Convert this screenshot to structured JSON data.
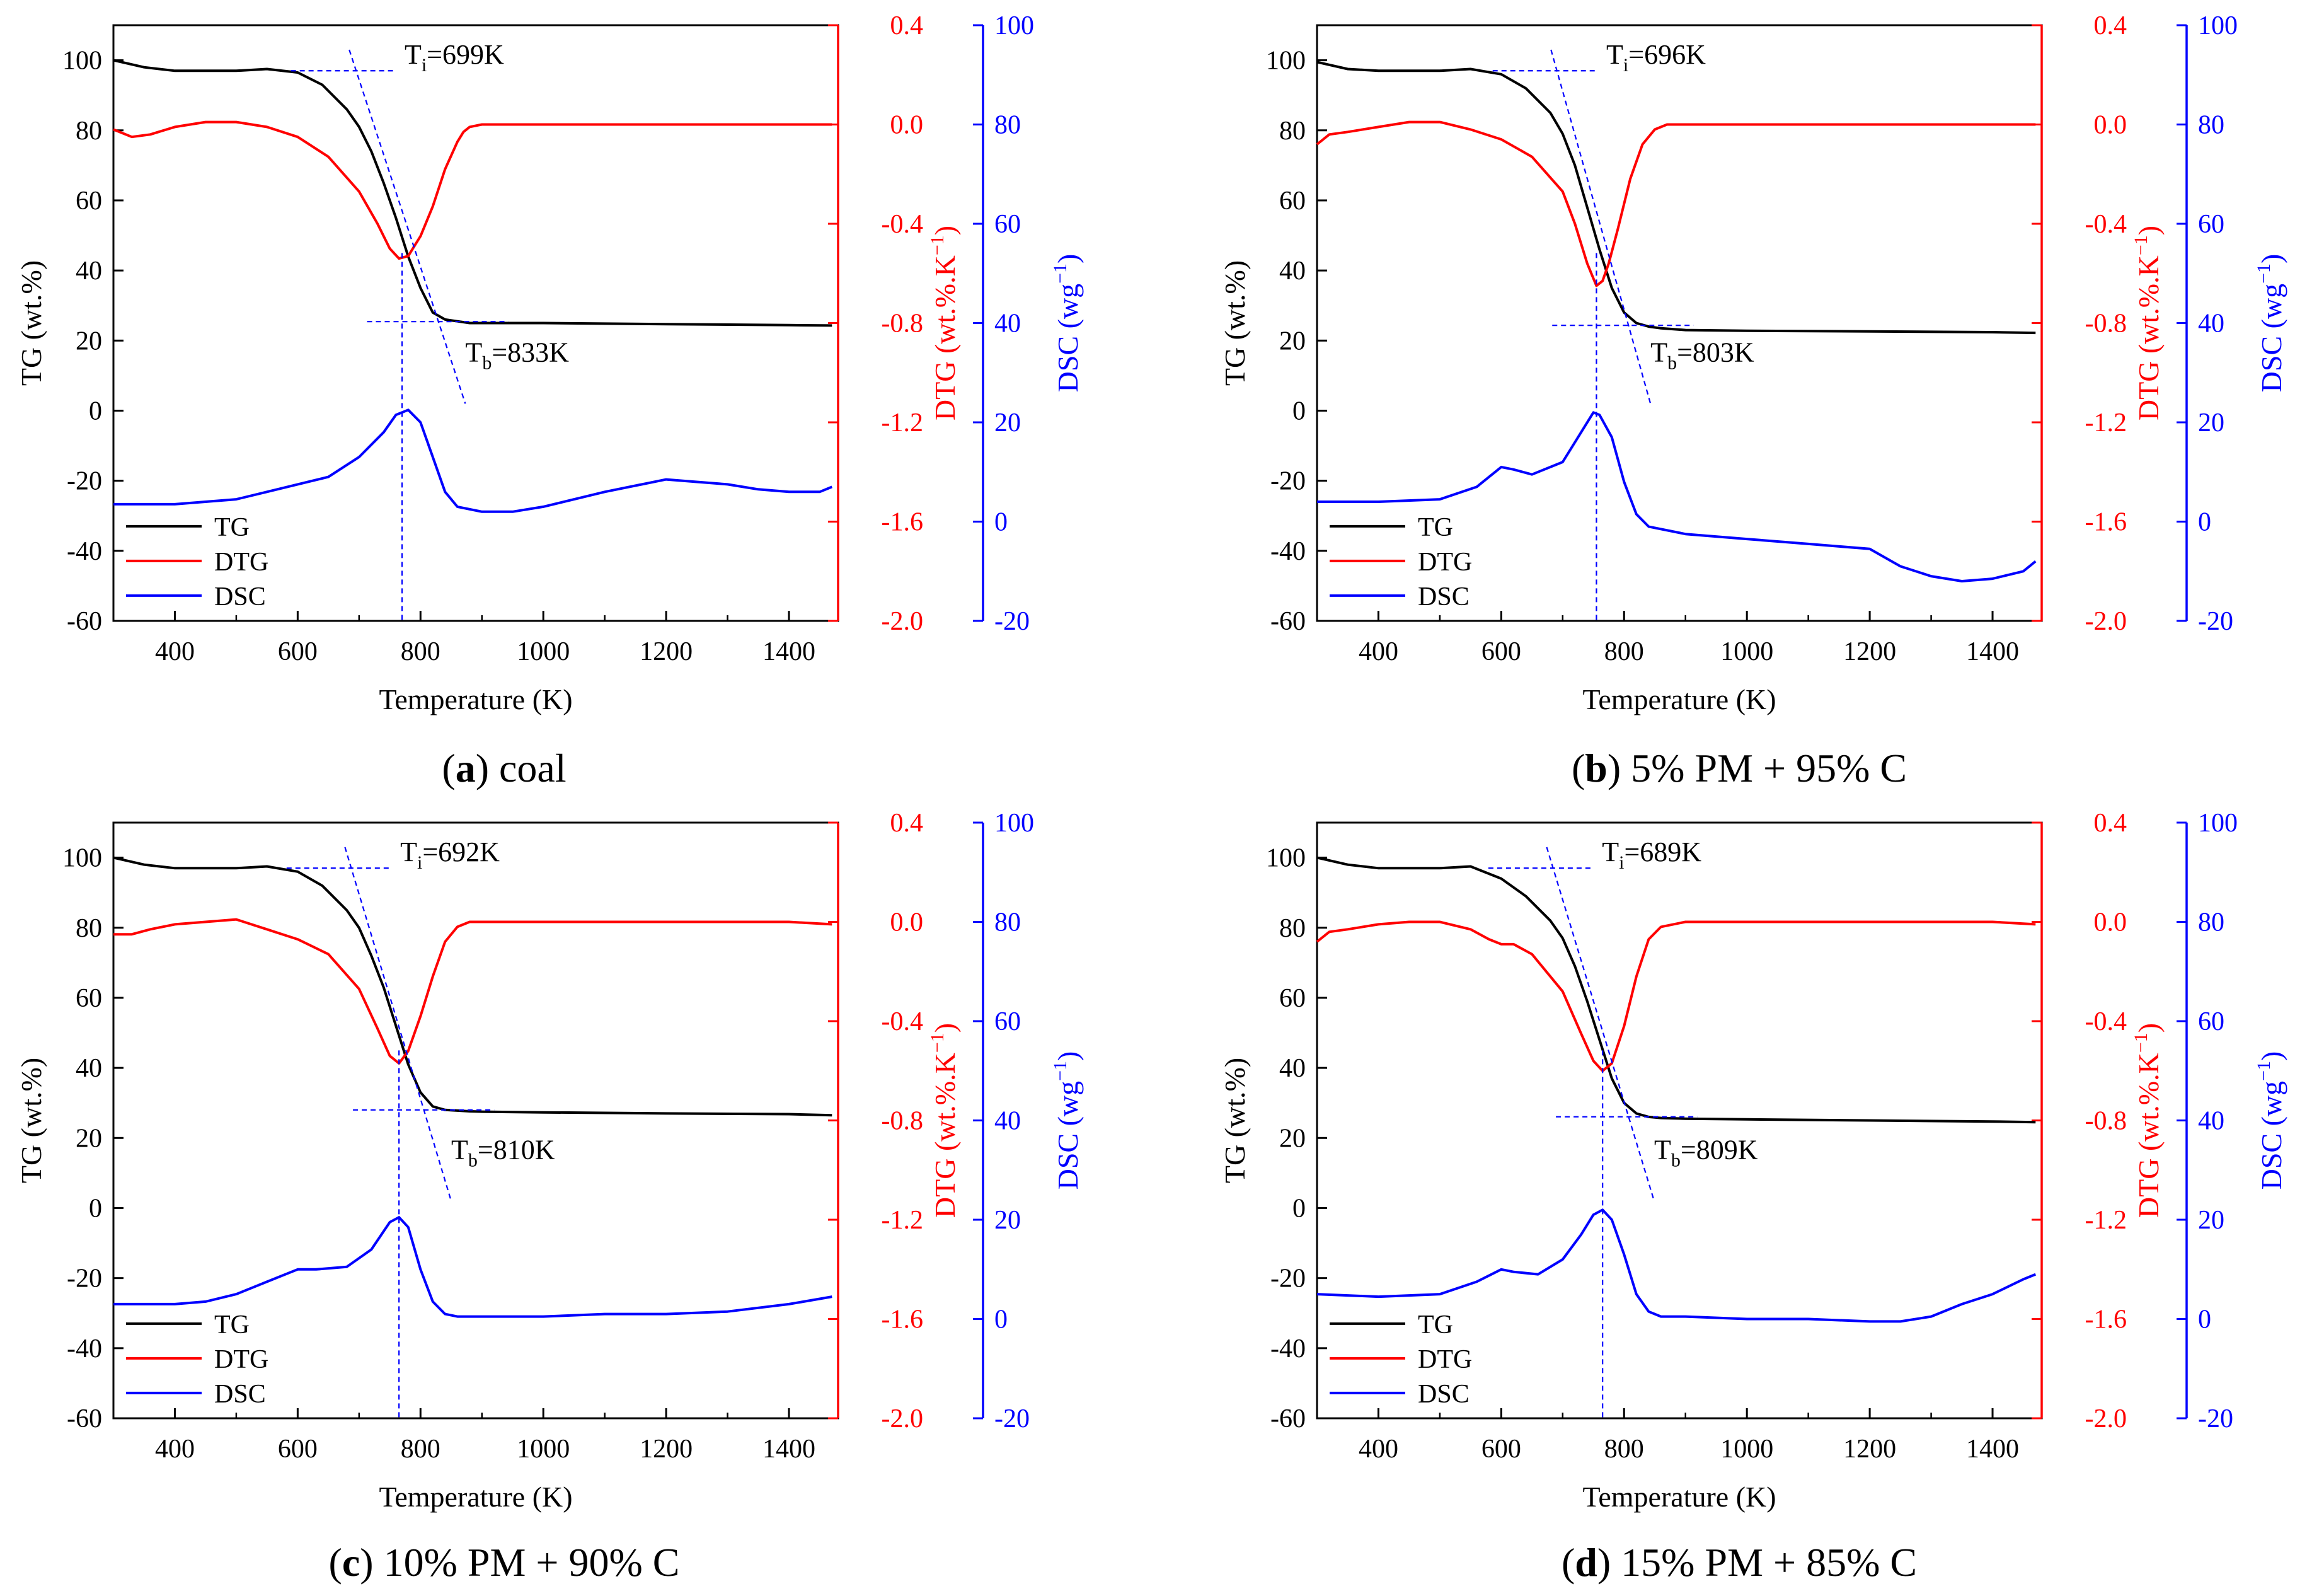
{
  "figure": {
    "shared": {
      "xlabel": "Temperature (K)",
      "y_tg_label": "TG (wt.%)",
      "y_dtg_label": "DTG (wt.%.K",
      "y_dtg_sup": "−1",
      "y_dtg_tail": ")",
      "y_dsc_label": "DSC (wg",
      "y_dsc_sup": "−1",
      "y_dsc_tail": ")",
      "x_ticks": [
        400,
        600,
        800,
        1000,
        1200,
        1400
      ],
      "xlim": [
        300,
        1480
      ],
      "tg_ylim": [
        -60,
        110
      ],
      "tg_ticks": [
        100,
        80,
        60,
        40,
        20,
        0,
        -20,
        -40,
        -60
      ],
      "dtg_ylim": [
        -2.0,
        0.4
      ],
      "dtg_ticks": [
        "0.4",
        "0.0",
        "-0.4",
        "-0.8",
        "-1.2",
        "-1.6",
        "-2.0"
      ],
      "dsc_ylim": [
        -20,
        100
      ],
      "dsc_ticks": [
        "100",
        "80",
        "60",
        "40",
        "20",
        "0",
        "-20"
      ],
      "legend": [
        "TG",
        "DTG",
        "DSC"
      ],
      "colors": {
        "tg": "#000000",
        "dtg": "#ff0000",
        "dsc": "#0000ff",
        "guide": "#0000ff"
      }
    }
  },
  "chart_data": [
    {
      "type": "line",
      "panel_letter": "a",
      "caption_text": " coal",
      "annotations": {
        "ti_label": "T",
        "ti_sub": "i",
        "ti_value": "=699K",
        "tb_label": "T",
        "tb_sub": "b",
        "tb_value": "=833K"
      },
      "ti_K": 699,
      "tb_K": 833,
      "peak_K": 770,
      "series": [
        {
          "name": "TG",
          "axis": "left",
          "x": [
            300,
            350,
            400,
            450,
            500,
            550,
            600,
            640,
            680,
            700,
            720,
            740,
            760,
            780,
            800,
            820,
            840,
            860,
            880,
            900,
            1000,
            1200,
            1400,
            1470
          ],
          "y": [
            100,
            98,
            97,
            97,
            97,
            97.5,
            96.5,
            93,
            86,
            81,
            74,
            65,
            55,
            44,
            35,
            28,
            26,
            25.5,
            25,
            25,
            25,
            24.7,
            24.4,
            24.3
          ]
        },
        {
          "name": "DTG",
          "axis": "dtg",
          "x": [
            300,
            330,
            360,
            400,
            450,
            500,
            550,
            600,
            650,
            700,
            730,
            750,
            765,
            780,
            790,
            800,
            820,
            840,
            860,
            870,
            880,
            900,
            1000,
            1200,
            1400,
            1470
          ],
          "y": [
            -0.02,
            -0.05,
            -0.04,
            -0.01,
            0.01,
            0.01,
            -0.01,
            -0.05,
            -0.13,
            -0.27,
            -0.4,
            -0.5,
            -0.54,
            -0.53,
            -0.49,
            -0.45,
            -0.33,
            -0.18,
            -0.07,
            -0.03,
            -0.01,
            0.0,
            0.0,
            0.0,
            0.0,
            0.0
          ]
        },
        {
          "name": "DSC",
          "axis": "dsc",
          "x": [
            300,
            400,
            500,
            550,
            600,
            650,
            700,
            740,
            760,
            780,
            800,
            820,
            840,
            860,
            900,
            950,
            1000,
            1100,
            1200,
            1250,
            1300,
            1350,
            1400,
            1450,
            1470
          ],
          "y": [
            3.5,
            3.5,
            4.5,
            6,
            7.5,
            9,
            13,
            18,
            21.5,
            22.5,
            20,
            13,
            6,
            3,
            2,
            2,
            3,
            6,
            8.5,
            8,
            7.5,
            6.5,
            6,
            6,
            7
          ]
        }
      ]
    },
    {
      "type": "line",
      "panel_letter": "b",
      "caption_text": " 5% PM + 95% C",
      "annotations": {
        "ti_label": "T",
        "ti_sub": "i",
        "ti_value": "=696K",
        "tb_label": "T",
        "tb_sub": "b",
        "tb_value": "=803K"
      },
      "ti_K": 696,
      "tb_K": 803,
      "peak_K": 755,
      "series": [
        {
          "name": "TG",
          "axis": "left",
          "x": [
            300,
            350,
            400,
            450,
            500,
            550,
            600,
            640,
            680,
            700,
            720,
            740,
            760,
            780,
            800,
            820,
            840,
            860,
            900,
            1000,
            1200,
            1400,
            1470
          ],
          "y": [
            99.5,
            97.5,
            97,
            97,
            97,
            97.5,
            96,
            92,
            85,
            79,
            70,
            58,
            46,
            35,
            28,
            25,
            24,
            23.5,
            23,
            22.8,
            22.6,
            22.4,
            22.2
          ]
        },
        {
          "name": "DTG",
          "axis": "dtg",
          "x": [
            300,
            320,
            350,
            400,
            450,
            500,
            550,
            600,
            650,
            700,
            720,
            740,
            755,
            765,
            775,
            790,
            810,
            830,
            850,
            870,
            900,
            1000,
            1200,
            1400,
            1470
          ],
          "y": [
            -0.08,
            -0.04,
            -0.03,
            -0.01,
            0.01,
            0.01,
            -0.02,
            -0.06,
            -0.13,
            -0.27,
            -0.4,
            -0.56,
            -0.65,
            -0.63,
            -0.56,
            -0.42,
            -0.22,
            -0.08,
            -0.02,
            0.0,
            0.0,
            0.0,
            0.0,
            0.0,
            0.0
          ]
        },
        {
          "name": "DSC",
          "axis": "dsc",
          "x": [
            300,
            400,
            500,
            560,
            600,
            620,
            650,
            700,
            730,
            750,
            760,
            780,
            800,
            820,
            840,
            900,
            1000,
            1100,
            1200,
            1250,
            1300,
            1350,
            1400,
            1450,
            1470
          ],
          "y": [
            4,
            4,
            4.5,
            7,
            11,
            10.5,
            9.5,
            12,
            18,
            22,
            21.5,
            17,
            8,
            1.5,
            -1,
            -2.5,
            -3.5,
            -4.5,
            -5.5,
            -9,
            -11,
            -12,
            -11.5,
            -10,
            -8
          ]
        }
      ]
    },
    {
      "type": "line",
      "panel_letter": "c",
      "caption_text": " 10% PM + 90% C",
      "annotations": {
        "ti_label": "T",
        "ti_sub": "i",
        "ti_value": "=692K",
        "tb_label": "T",
        "tb_sub": "b",
        "tb_value": "=810K"
      },
      "ti_K": 692,
      "tb_K": 810,
      "peak_K": 765,
      "series": [
        {
          "name": "TG",
          "axis": "left",
          "x": [
            300,
            350,
            400,
            450,
            500,
            550,
            600,
            640,
            680,
            700,
            720,
            740,
            760,
            780,
            800,
            820,
            840,
            860,
            880,
            900,
            1000,
            1200,
            1400,
            1470
          ],
          "y": [
            100,
            98,
            97,
            97,
            97,
            97.5,
            96,
            92,
            85,
            80,
            72,
            63,
            52,
            41,
            33,
            29,
            28,
            27.8,
            27.6,
            27.5,
            27.3,
            27,
            26.8,
            26.5
          ]
        },
        {
          "name": "DTG",
          "axis": "dtg",
          "x": [
            300,
            330,
            360,
            400,
            450,
            500,
            550,
            600,
            650,
            700,
            730,
            750,
            765,
            780,
            800,
            820,
            840,
            860,
            880,
            900,
            1000,
            1200,
            1400,
            1470
          ],
          "y": [
            -0.05,
            -0.05,
            -0.03,
            -0.01,
            0.0,
            0.01,
            -0.03,
            -0.07,
            -0.13,
            -0.27,
            -0.43,
            -0.54,
            -0.57,
            -0.52,
            -0.38,
            -0.22,
            -0.08,
            -0.02,
            0.0,
            0.0,
            0.0,
            0.0,
            0.0,
            -0.01
          ]
        },
        {
          "name": "DSC",
          "axis": "dsc",
          "x": [
            300,
            400,
            450,
            500,
            550,
            600,
            630,
            680,
            720,
            750,
            765,
            780,
            800,
            820,
            840,
            860,
            900,
            1000,
            1100,
            1200,
            1300,
            1400,
            1470
          ],
          "y": [
            3,
            3,
            3.5,
            5,
            7.5,
            10,
            10,
            10.5,
            14,
            19.5,
            20.5,
            18.5,
            10,
            3.5,
            1,
            0.5,
            0.5,
            0.5,
            1,
            1,
            1.5,
            3,
            4.5
          ]
        }
      ]
    },
    {
      "type": "line",
      "panel_letter": "d",
      "caption_text": " 15% PM + 85% C",
      "annotations": {
        "ti_label": "T",
        "ti_sub": "i",
        "ti_value": "=689K",
        "tb_label": "T",
        "tb_sub": "b",
        "tb_value": "=809K"
      },
      "ti_K": 689,
      "tb_K": 809,
      "peak_K": 765,
      "series": [
        {
          "name": "TG",
          "axis": "left",
          "x": [
            300,
            350,
            400,
            450,
            500,
            550,
            600,
            640,
            680,
            700,
            720,
            740,
            760,
            780,
            800,
            820,
            840,
            860,
            900,
            1000,
            1200,
            1400,
            1470
          ],
          "y": [
            100,
            98,
            97,
            97,
            97,
            97.5,
            94,
            89,
            82,
            77,
            69,
            59,
            48,
            37,
            30,
            27,
            26,
            25.7,
            25.5,
            25.3,
            25,
            24.7,
            24.5
          ]
        },
        {
          "name": "DTG",
          "axis": "dtg",
          "x": [
            300,
            320,
            350,
            400,
            450,
            500,
            550,
            580,
            600,
            620,
            650,
            700,
            730,
            750,
            765,
            780,
            800,
            820,
            840,
            860,
            900,
            1000,
            1200,
            1400,
            1470
          ],
          "y": [
            -0.08,
            -0.04,
            -0.03,
            -0.01,
            0.0,
            0.0,
            -0.03,
            -0.07,
            -0.09,
            -0.09,
            -0.13,
            -0.28,
            -0.45,
            -0.56,
            -0.6,
            -0.57,
            -0.42,
            -0.22,
            -0.07,
            -0.02,
            0.0,
            0.0,
            0.0,
            0.0,
            -0.01
          ]
        },
        {
          "name": "DSC",
          "axis": "dsc",
          "x": [
            300,
            400,
            500,
            560,
            600,
            620,
            660,
            700,
            730,
            750,
            765,
            780,
            800,
            820,
            840,
            860,
            900,
            1000,
            1100,
            1200,
            1250,
            1300,
            1350,
            1400,
            1450,
            1470
          ],
          "y": [
            5,
            4.5,
            5,
            7.5,
            10,
            9.5,
            9,
            12,
            17,
            21,
            22,
            20,
            13,
            5,
            1.5,
            0.5,
            0.5,
            0,
            0,
            -0.5,
            -0.5,
            0.5,
            3,
            5,
            8,
            9
          ]
        }
      ]
    }
  ]
}
